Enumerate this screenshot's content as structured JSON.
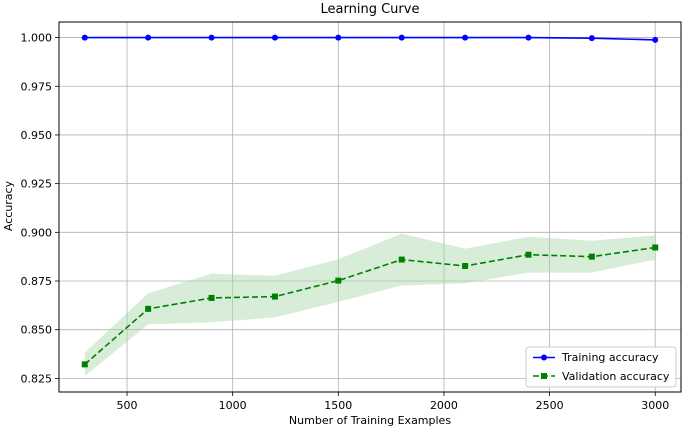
{
  "chart_data": {
    "type": "line",
    "title": "Learning Curve",
    "xlabel": "Number of Training Examples",
    "ylabel": "Accuracy",
    "xlim": [
      178,
      3122
    ],
    "ylim": [
      0.818,
      1.008
    ],
    "x_ticks": [
      500,
      1000,
      1500,
      2000,
      2500,
      3000
    ],
    "y_ticks": [
      0.825,
      0.85,
      0.875,
      0.9,
      0.925,
      0.95,
      0.975,
      1.0
    ],
    "y_tick_labels": [
      "0.825",
      "0.850",
      "0.875",
      "0.900",
      "0.925",
      "0.950",
      "0.975",
      "1.000"
    ],
    "grid": true,
    "legend_position": "lower-right",
    "x": [
      300,
      600,
      900,
      1200,
      1500,
      1800,
      2100,
      2400,
      2700,
      3000
    ],
    "series": [
      {
        "name": "Training accuracy",
        "color": "#0000ff",
        "marker": "circle",
        "linestyle": "solid",
        "values": [
          1.0,
          1.0,
          1.0,
          1.0,
          1.0,
          1.0,
          1.0,
          1.0,
          0.9997,
          0.9988
        ]
      },
      {
        "name": "Validation accuracy",
        "color": "#008000",
        "marker": "square",
        "linestyle": "dashed",
        "values": [
          0.8322,
          0.8607,
          0.8663,
          0.867,
          0.8752,
          0.886,
          0.8827,
          0.8885,
          0.8875,
          0.8922
        ],
        "band_lower": [
          0.8262,
          0.8527,
          0.8538,
          0.8563,
          0.8643,
          0.8727,
          0.8738,
          0.8793,
          0.8793,
          0.886
        ],
        "band_upper": [
          0.8382,
          0.8687,
          0.8788,
          0.8777,
          0.8862,
          0.8993,
          0.8916,
          0.8977,
          0.8957,
          0.8984
        ],
        "band_color": "#a8d8a8"
      }
    ]
  }
}
